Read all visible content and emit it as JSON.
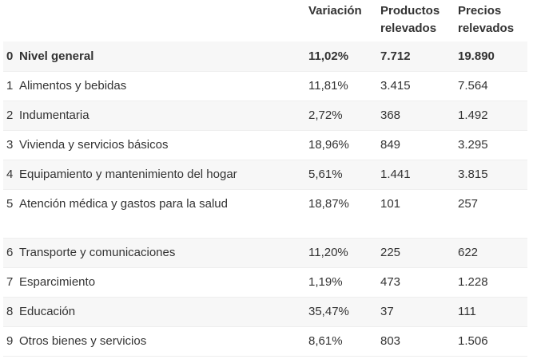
{
  "headers": {
    "variacion": "Variación",
    "productos": [
      "Productos",
      "relevados"
    ],
    "precios": [
      "Precios",
      "relevados"
    ]
  },
  "rows": [
    {
      "idx": "0",
      "name": "Nivel general",
      "variacion": "11,02%",
      "productos": "7.712",
      "precios": "19.890"
    },
    {
      "idx": "1",
      "name": "Alimentos y bebidas",
      "variacion": "11,81%",
      "productos": "3.415",
      "precios": "7.564"
    },
    {
      "idx": "2",
      "name": "Indumentaria",
      "variacion": "2,72%",
      "productos": "368",
      "precios": "1.492"
    },
    {
      "idx": "3",
      "name": "Vivienda y servicios básicos",
      "variacion": "18,96%",
      "productos": "849",
      "precios": "3.295"
    },
    {
      "idx": "4",
      "name": "Equipamiento y mantenimiento del hogar",
      "variacion": "5,61%",
      "productos": "1.441",
      "precios": "3.815"
    },
    {
      "idx": "5",
      "name": "Atención médica y gastos para la salud",
      "variacion": "18,87%",
      "productos": "101",
      "precios": "257"
    },
    {
      "idx": "6",
      "name": "Transporte y comunicaciones",
      "variacion": "11,20%",
      "productos": "225",
      "precios": "622"
    },
    {
      "idx": "7",
      "name": "Esparcimiento",
      "variacion": "1,19%",
      "productos": "473",
      "precios": "1.228"
    },
    {
      "idx": "8",
      "name": "Educación",
      "variacion": "35,47%",
      "productos": "37",
      "precios": "111"
    },
    {
      "idx": "9",
      "name": "Otros bienes y servicios",
      "variacion": "8,61%",
      "productos": "803",
      "precios": "1.506"
    }
  ]
}
